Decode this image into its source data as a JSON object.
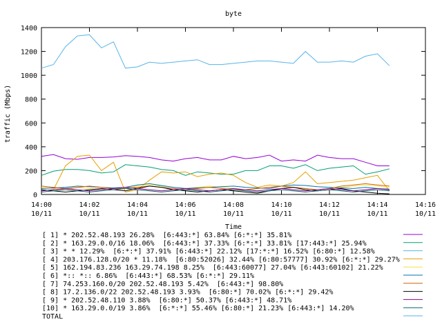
{
  "chart_data": {
    "type": "line",
    "title": "byte",
    "xlabel": "Time",
    "ylabel": "traffic (Mbps)",
    "ylim": [
      0,
      1400
    ],
    "yticks": [
      0,
      200,
      400,
      600,
      800,
      1000,
      1200,
      1400
    ],
    "xlim_minutes": [
      0,
      16
    ],
    "xticks": [
      {
        "t": 0,
        "time": "14:00",
        "date": "10/11"
      },
      {
        "t": 2,
        "time": "14:02",
        "date": "10/11"
      },
      {
        "t": 4,
        "time": "14:04",
        "date": "10/11"
      },
      {
        "t": 6,
        "time": "14:06",
        "date": "10/11"
      },
      {
        "t": 8,
        "time": "14:08",
        "date": "10/11"
      },
      {
        "t": 10,
        "time": "14:10",
        "date": "10/11"
      },
      {
        "t": 12,
        "time": "14:12",
        "date": "10/11"
      },
      {
        "t": 14,
        "time": "14:14",
        "date": "10/11"
      },
      {
        "t": 16,
        "time": "14:16",
        "date": "10/11"
      }
    ],
    "grid": false,
    "legend_position": "bottom",
    "x": [
      0,
      0.5,
      1,
      1.5,
      2,
      2.5,
      3,
      3.5,
      4,
      4.5,
      5,
      5.5,
      6,
      6.5,
      7,
      7.5,
      8,
      8.5,
      9,
      9.5,
      10,
      10.5,
      11,
      11.5,
      12,
      12.5,
      13,
      13.5,
      14,
      14.5
    ],
    "series": [
      {
        "name": "[ 1] * 202.52.48.193 26.28%  [6:443:*] 63.84% [6:*:*] 35.81%",
        "color": "#9400d3",
        "values": [
          320,
          335,
          300,
          295,
          310,
          310,
          315,
          325,
          320,
          310,
          290,
          280,
          300,
          310,
          290,
          290,
          320,
          300,
          310,
          330,
          280,
          290,
          280,
          330,
          310,
          300,
          300,
          270,
          240,
          240
        ]
      },
      {
        "name": "[ 2] * 163.29.0.0/16 18.06%  [6:443:*] 37.33% [6:*:*] 33.81% [17:443:*] 25.94%",
        "color": "#009e73",
        "values": [
          160,
          195,
          210,
          210,
          200,
          180,
          190,
          250,
          240,
          230,
          210,
          200,
          160,
          190,
          180,
          170,
          170,
          200,
          200,
          240,
          240,
          220,
          250,
          200,
          220,
          230,
          240,
          170,
          190,
          215
        ]
      },
      {
        "name": "[ 3] * * 12.29%  [6:*:*] 37.91% [6:443:*] 22.12% [17:*:*] 16.52% [6:80:*] 12.58%",
        "color": "#56b4e9",
        "values": [
          1060,
          1090,
          1240,
          1330,
          1340,
          1230,
          1280,
          1060,
          1070,
          1110,
          1100,
          1110,
          1120,
          1130,
          1090,
          1090,
          1100,
          1110,
          1120,
          1120,
          1110,
          1100,
          1200,
          1110,
          1110,
          1120,
          1110,
          1160,
          1180,
          1080
        ]
      },
      {
        "name": "[ 4] 203.176.128.0/20 * 11.18%  [6:80:52026] 32.44% [6:80:57777] 30.92% [6:*:*] 29.27%",
        "color": "#e69f00",
        "values": [
          30,
          40,
          240,
          320,
          330,
          200,
          270,
          20,
          40,
          120,
          190,
          180,
          190,
          150,
          170,
          180,
          160,
          100,
          60,
          80,
          70,
          100,
          190,
          90,
          100,
          110,
          120,
          140,
          160,
          30
        ]
      },
      {
        "name": "[ 5] 162.194.83.236 163.29.74.198 8.25%  [6:443:60077] 27.04% [6:443:60102] 21.22%",
        "color": "#f0e442",
        "values": [
          60,
          50,
          40,
          60,
          50,
          40,
          50,
          60,
          70,
          80,
          70,
          60,
          50,
          60,
          70,
          60,
          50,
          40,
          50,
          60,
          70,
          60,
          50,
          40,
          50,
          60,
          70,
          80,
          70,
          60
        ]
      },
      {
        "name": "[ 6] *:: *:: 6.86%  [6:443:*] 68.53% [6:*:*] 29.11%",
        "color": "#0072b2",
        "values": [
          50,
          55,
          60,
          70,
          65,
          60,
          55,
          60,
          80,
          90,
          75,
          60,
          50,
          55,
          60,
          65,
          70,
          60,
          55,
          50,
          70,
          80,
          75,
          65,
          60,
          55,
          50,
          60,
          50,
          45
        ]
      },
      {
        "name": "[ 7] 74.253.160.0/20 202.52.48.193 5.42%  [6:443:*] 98.80%",
        "color": "#d55e00",
        "values": [
          70,
          60,
          50,
          60,
          70,
          60,
          50,
          50,
          60,
          70,
          60,
          50,
          40,
          50,
          60,
          50,
          40,
          40,
          50,
          60,
          70,
          60,
          50,
          40,
          50,
          70,
          80,
          90,
          80,
          70
        ]
      },
      {
        "name": "[ 8] 17.2.136.0/22 202.52.48.193 3.93%  [6:80:*] 70.02% [6:*:*] 29.42%",
        "color": "#000000",
        "values": [
          40,
          30,
          20,
          30,
          40,
          50,
          40,
          30,
          50,
          70,
          60,
          40,
          30,
          20,
          30,
          40,
          30,
          20,
          10,
          30,
          50,
          60,
          40,
          30,
          40,
          50,
          30,
          20,
          10,
          5
        ]
      },
      {
        "name": "[ 9] * 202.52.48.110 3.88%  [6:80:*] 50.37% [6:443:*] 48.71%",
        "color": "#8b008b",
        "values": [
          30,
          40,
          50,
          40,
          30,
          40,
          50,
          60,
          50,
          40,
          30,
          40,
          50,
          40,
          30,
          40,
          50,
          40,
          30,
          40,
          50,
          40,
          30,
          40,
          50,
          40,
          30,
          40,
          50,
          40
        ]
      },
      {
        "name": "[10] * 163.29.0.0/19 3.86%  [6:*:*] 55.46% [6:80:*] 21.23% [6:443:*] 14.20%",
        "color": "#006666",
        "values": [
          20,
          30,
          40,
          30,
          20,
          30,
          40,
          50,
          40,
          30,
          20,
          30,
          40,
          30,
          20,
          30,
          40,
          30,
          20,
          30,
          40,
          30,
          20,
          30,
          40,
          30,
          20,
          30,
          40,
          30
        ]
      }
    ],
    "total": {
      "name": "TOTAL",
      "color": "#56b4e9"
    }
  }
}
